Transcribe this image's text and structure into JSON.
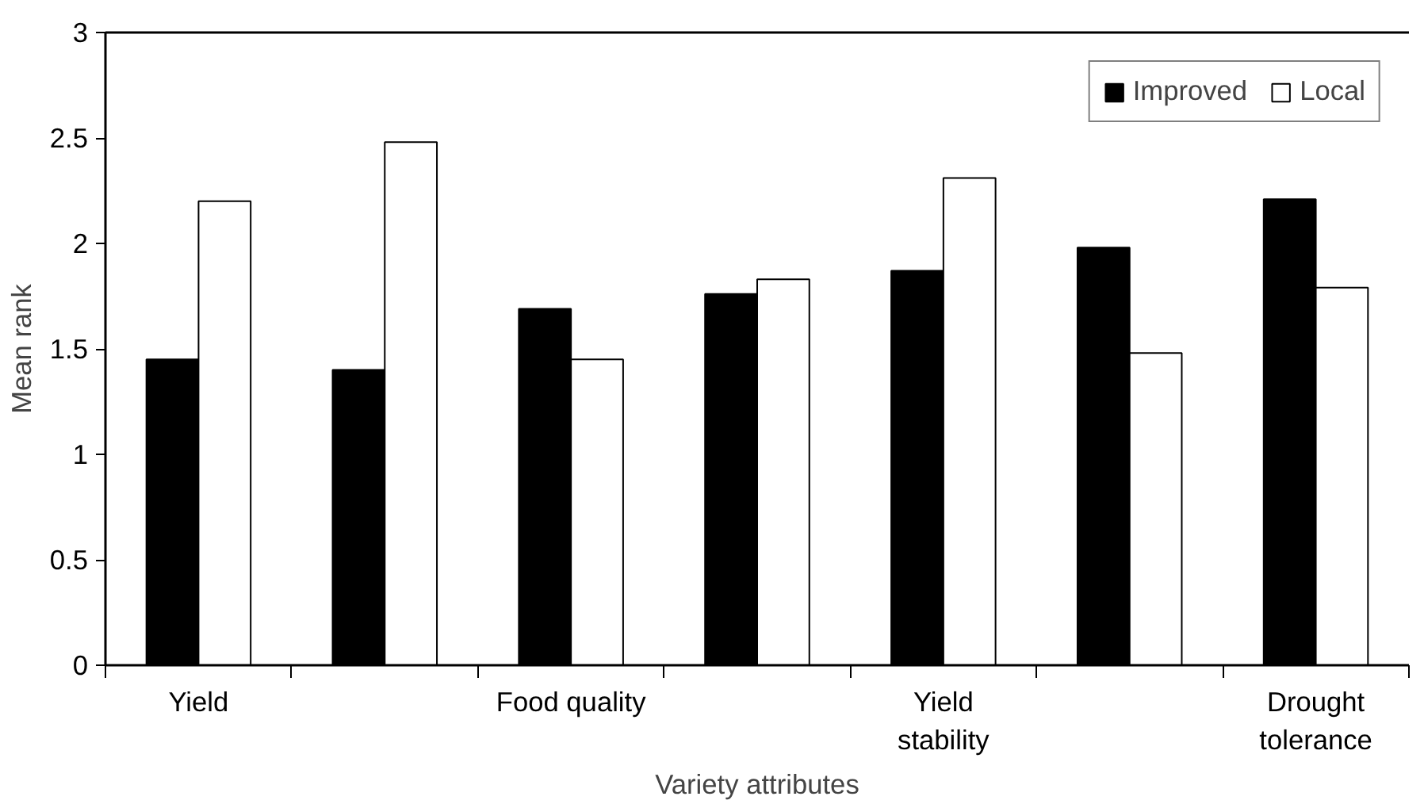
{
  "chart_data": {
    "type": "bar",
    "xlabel": "Variety attributes",
    "ylabel": "Mean rank",
    "categories": [
      "Yield",
      null,
      "Food quality",
      null,
      "Yield\nstability",
      null,
      "Drought\ntolerance"
    ],
    "series": [
      {
        "name": "Improved",
        "color": "#000000",
        "values": [
          1.45,
          1.4,
          1.69,
          1.76,
          1.87,
          1.98,
          2.21
        ]
      },
      {
        "name": "Local",
        "color": "#ffffff",
        "values": [
          2.2,
          2.48,
          1.45,
          1.83,
          2.31,
          1.48,
          1.79
        ]
      }
    ],
    "ylim": [
      0,
      3
    ],
    "yticks": [
      0,
      0.5,
      1,
      1.5,
      2,
      2.5,
      3
    ],
    "grid": false,
    "legend": "top right"
  }
}
